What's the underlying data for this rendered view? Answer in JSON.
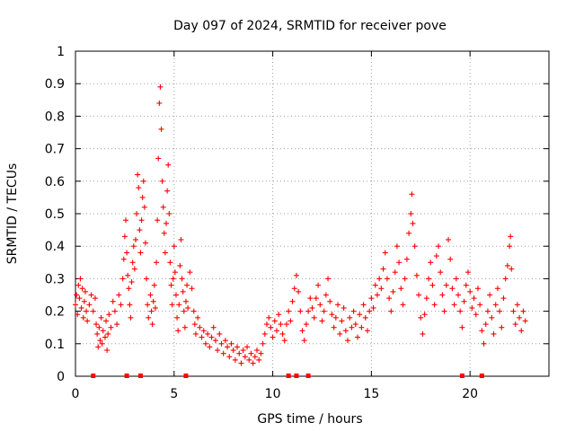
{
  "chart_data": {
    "type": "scatter",
    "title": "Day 097 of 2024, SRMTID for receiver pove",
    "xlabel": "GPS time / hours",
    "ylabel": "SRMTID / TECUs",
    "xlim": [
      0,
      24
    ],
    "ylim": [
      0,
      1
    ],
    "x_ticks": [
      0,
      5,
      10,
      15,
      20
    ],
    "x_tick_labels": [
      "0",
      "5",
      "10",
      "15",
      "20"
    ],
    "y_ticks": [
      0,
      0.1,
      0.2,
      0.3,
      0.4,
      0.5,
      0.6,
      0.7,
      0.8,
      0.9,
      1
    ],
    "y_tick_labels": [
      "0",
      "0.1",
      "0.2",
      "0.3",
      "0.4",
      "0.5",
      "0.6",
      "0.7",
      "0.8",
      "0.9",
      "1"
    ],
    "grid": true,
    "marker": "+",
    "color": "#ff0000",
    "series": [
      {
        "name": "SRMTID",
        "points": [
          [
            0.0,
            0.22
          ],
          [
            0.05,
            0.25
          ],
          [
            0.1,
            0.19
          ],
          [
            0.15,
            0.28
          ],
          [
            0.2,
            0.24
          ],
          [
            0.25,
            0.3
          ],
          [
            0.3,
            0.21
          ],
          [
            0.35,
            0.27
          ],
          [
            0.4,
            0.18
          ],
          [
            0.45,
            0.23
          ],
          [
            0.5,
            0.26
          ],
          [
            0.55,
            0.2
          ],
          [
            0.6,
            0.17
          ],
          [
            0.7,
            0.22
          ],
          [
            0.8,
            0.25
          ],
          [
            0.9,
            0.2
          ],
          [
            1.0,
            0.24
          ],
          [
            1.05,
            0.16
          ],
          [
            1.1,
            0.13
          ],
          [
            1.15,
            0.09
          ],
          [
            1.2,
            0.15
          ],
          [
            1.25,
            0.11
          ],
          [
            1.3,
            0.18
          ],
          [
            1.35,
            0.1
          ],
          [
            1.4,
            0.14
          ],
          [
            1.5,
            0.12
          ],
          [
            1.55,
            0.17
          ],
          [
            1.6,
            0.08
          ],
          [
            1.65,
            0.13
          ],
          [
            1.7,
            0.19
          ],
          [
            1.8,
            0.15
          ],
          [
            1.9,
            0.23
          ],
          [
            2.0,
            0.2
          ],
          [
            2.1,
            0.16
          ],
          [
            2.2,
            0.25
          ],
          [
            2.3,
            0.22
          ],
          [
            2.4,
            0.3
          ],
          [
            2.45,
            0.36
          ],
          [
            2.5,
            0.43
          ],
          [
            2.55,
            0.48
          ],
          [
            2.6,
            0.38
          ],
          [
            2.65,
            0.31
          ],
          [
            2.7,
            0.27
          ],
          [
            2.75,
            0.22
          ],
          [
            2.8,
            0.18
          ],
          [
            2.85,
            0.29
          ],
          [
            2.9,
            0.35
          ],
          [
            2.95,
            0.4
          ],
          [
            3.0,
            0.33
          ],
          [
            3.05,
            0.42
          ],
          [
            3.1,
            0.5
          ],
          [
            3.15,
            0.62
          ],
          [
            3.2,
            0.58
          ],
          [
            3.25,
            0.45
          ],
          [
            3.3,
            0.38
          ],
          [
            3.35,
            0.48
          ],
          [
            3.4,
            0.55
          ],
          [
            3.45,
            0.6
          ],
          [
            3.5,
            0.52
          ],
          [
            3.55,
            0.41
          ],
          [
            3.6,
            0.3
          ],
          [
            3.65,
            0.22
          ],
          [
            3.7,
            0.18
          ],
          [
            3.8,
            0.25
          ],
          [
            3.85,
            0.2
          ],
          [
            3.9,
            0.16
          ],
          [
            3.95,
            0.23
          ],
          [
            4.0,
            0.28
          ],
          [
            4.05,
            0.21
          ],
          [
            4.1,
            0.35
          ],
          [
            4.15,
            0.48
          ],
          [
            4.2,
            0.67
          ],
          [
            4.25,
            0.84
          ],
          [
            4.3,
            0.89
          ],
          [
            4.35,
            0.76
          ],
          [
            4.4,
            0.6
          ],
          [
            4.45,
            0.52
          ],
          [
            4.5,
            0.44
          ],
          [
            4.55,
            0.38
          ],
          [
            4.6,
            0.47
          ],
          [
            4.65,
            0.57
          ],
          [
            4.7,
            0.65
          ],
          [
            4.75,
            0.5
          ],
          [
            4.8,
            0.35
          ],
          [
            4.85,
            0.28
          ],
          [
            4.9,
            0.22
          ],
          [
            4.95,
            0.3
          ],
          [
            5.0,
            0.4
          ],
          [
            5.05,
            0.32
          ],
          [
            5.1,
            0.25
          ],
          [
            5.15,
            0.18
          ],
          [
            5.2,
            0.14
          ],
          [
            5.25,
            0.22
          ],
          [
            5.3,
            0.34
          ],
          [
            5.35,
            0.42
          ],
          [
            5.4,
            0.3
          ],
          [
            5.45,
            0.26
          ],
          [
            5.5,
            0.2
          ],
          [
            5.55,
            0.15
          ],
          [
            5.6,
            0.23
          ],
          [
            5.65,
            0.28
          ],
          [
            5.7,
            0.21
          ],
          [
            5.8,
            0.32
          ],
          [
            5.9,
            0.27
          ],
          [
            6.0,
            0.2
          ],
          [
            6.05,
            0.16
          ],
          [
            6.1,
            0.13
          ],
          [
            6.2,
            0.18
          ],
          [
            6.3,
            0.15
          ],
          [
            6.4,
            0.12
          ],
          [
            6.5,
            0.14
          ],
          [
            6.6,
            0.1
          ],
          [
            6.7,
            0.13
          ],
          [
            6.8,
            0.09
          ],
          [
            6.9,
            0.12
          ],
          [
            7.0,
            0.15
          ],
          [
            7.1,
            0.11
          ],
          [
            7.2,
            0.08
          ],
          [
            7.3,
            0.13
          ],
          [
            7.4,
            0.1
          ],
          [
            7.5,
            0.07
          ],
          [
            7.6,
            0.11
          ],
          [
            7.7,
            0.09
          ],
          [
            7.8,
            0.06
          ],
          [
            7.9,
            0.1
          ],
          [
            8.0,
            0.08
          ],
          [
            8.1,
            0.05
          ],
          [
            8.2,
            0.09
          ],
          [
            8.3,
            0.07
          ],
          [
            8.4,
            0.04
          ],
          [
            8.5,
            0.08
          ],
          [
            8.6,
            0.06
          ],
          [
            8.7,
            0.09
          ],
          [
            8.8,
            0.05
          ],
          [
            8.9,
            0.07
          ],
          [
            9.0,
            0.04
          ],
          [
            9.1,
            0.06
          ],
          [
            9.2,
            0.08
          ],
          [
            9.3,
            0.05
          ],
          [
            9.4,
            0.07
          ],
          [
            9.5,
            0.1
          ],
          [
            9.6,
            0.13
          ],
          [
            9.7,
            0.16
          ],
          [
            9.8,
            0.18
          ],
          [
            9.9,
            0.15
          ],
          [
            10.0,
            0.12
          ],
          [
            10.1,
            0.17
          ],
          [
            10.2,
            0.14
          ],
          [
            10.3,
            0.19
          ],
          [
            10.4,
            0.16
          ],
          [
            10.5,
            0.13
          ],
          [
            10.6,
            0.11
          ],
          [
            10.7,
            0.16
          ],
          [
            10.8,
            0.2
          ],
          [
            10.9,
            0.17
          ],
          [
            11.0,
            0.23
          ],
          [
            11.1,
            0.27
          ],
          [
            11.2,
            0.31
          ],
          [
            11.3,
            0.26
          ],
          [
            11.4,
            0.2
          ],
          [
            11.5,
            0.14
          ],
          [
            11.6,
            0.11
          ],
          [
            11.7,
            0.16
          ],
          [
            11.8,
            0.2
          ],
          [
            11.9,
            0.24
          ],
          [
            12.0,
            0.21
          ],
          [
            12.1,
            0.18
          ],
          [
            12.2,
            0.24
          ],
          [
            12.3,
            0.28
          ],
          [
            12.4,
            0.22
          ],
          [
            12.5,
            0.17
          ],
          [
            12.6,
            0.2
          ],
          [
            12.7,
            0.25
          ],
          [
            12.8,
            0.3
          ],
          [
            12.9,
            0.23
          ],
          [
            13.0,
            0.19
          ],
          [
            13.1,
            0.15
          ],
          [
            13.2,
            0.18
          ],
          [
            13.3,
            0.22
          ],
          [
            13.4,
            0.13
          ],
          [
            13.5,
            0.17
          ],
          [
            13.6,
            0.21
          ],
          [
            13.7,
            0.14
          ],
          [
            13.8,
            0.11
          ],
          [
            13.9,
            0.18
          ],
          [
            14.0,
            0.15
          ],
          [
            14.1,
            0.2
          ],
          [
            14.2,
            0.16
          ],
          [
            14.3,
            0.12
          ],
          [
            14.4,
            0.19
          ],
          [
            14.5,
            0.15
          ],
          [
            14.6,
            0.22
          ],
          [
            14.7,
            0.18
          ],
          [
            14.8,
            0.14
          ],
          [
            14.9,
            0.2
          ],
          [
            15.0,
            0.24
          ],
          [
            15.1,
            0.21
          ],
          [
            15.2,
            0.28
          ],
          [
            15.3,
            0.25
          ],
          [
            15.4,
            0.3
          ],
          [
            15.5,
            0.27
          ],
          [
            15.6,
            0.33
          ],
          [
            15.7,
            0.38
          ],
          [
            15.8,
            0.3
          ],
          [
            15.9,
            0.24
          ],
          [
            16.0,
            0.2
          ],
          [
            16.1,
            0.26
          ],
          [
            16.2,
            0.32
          ],
          [
            16.3,
            0.4
          ],
          [
            16.4,
            0.35
          ],
          [
            16.5,
            0.27
          ],
          [
            16.6,
            0.22
          ],
          [
            16.7,
            0.3
          ],
          [
            16.8,
            0.36
          ],
          [
            16.9,
            0.44
          ],
          [
            17.0,
            0.5
          ],
          [
            17.05,
            0.56
          ],
          [
            17.1,
            0.47
          ],
          [
            17.2,
            0.4
          ],
          [
            17.3,
            0.31
          ],
          [
            17.4,
            0.25
          ],
          [
            17.5,
            0.18
          ],
          [
            17.6,
            0.13
          ],
          [
            17.7,
            0.19
          ],
          [
            17.8,
            0.24
          ],
          [
            17.9,
            0.3
          ],
          [
            18.0,
            0.35
          ],
          [
            18.1,
            0.28
          ],
          [
            18.2,
            0.22
          ],
          [
            18.3,
            0.37
          ],
          [
            18.4,
            0.4
          ],
          [
            18.5,
            0.32
          ],
          [
            18.6,
            0.25
          ],
          [
            18.7,
            0.2
          ],
          [
            18.8,
            0.28
          ],
          [
            18.9,
            0.42
          ],
          [
            19.0,
            0.36
          ],
          [
            19.1,
            0.27
          ],
          [
            19.2,
            0.22
          ],
          [
            19.3,
            0.3
          ],
          [
            19.4,
            0.25
          ],
          [
            19.5,
            0.2
          ],
          [
            19.6,
            0.15
          ],
          [
            19.7,
            0.23
          ],
          [
            19.8,
            0.28
          ],
          [
            19.9,
            0.32
          ],
          [
            20.0,
            0.26
          ],
          [
            20.1,
            0.21
          ],
          [
            20.2,
            0.24
          ],
          [
            20.3,
            0.19
          ],
          [
            20.4,
            0.27
          ],
          [
            20.5,
            0.22
          ],
          [
            20.6,
            0.14
          ],
          [
            20.7,
            0.1
          ],
          [
            20.8,
            0.16
          ],
          [
            20.9,
            0.2
          ],
          [
            21.0,
            0.25
          ],
          [
            21.1,
            0.18
          ],
          [
            21.2,
            0.13
          ],
          [
            21.3,
            0.22
          ],
          [
            21.4,
            0.27
          ],
          [
            21.5,
            0.2
          ],
          [
            21.6,
            0.15
          ],
          [
            21.7,
            0.24
          ],
          [
            21.8,
            0.3
          ],
          [
            21.9,
            0.34
          ],
          [
            22.0,
            0.4
          ],
          [
            22.05,
            0.43
          ],
          [
            22.1,
            0.33
          ],
          [
            22.2,
            0.2
          ],
          [
            22.3,
            0.16
          ],
          [
            22.4,
            0.22
          ],
          [
            22.5,
            0.18
          ],
          [
            22.6,
            0.14
          ],
          [
            22.7,
            0.2
          ],
          [
            22.8,
            0.17
          ]
        ]
      }
    ],
    "zero_markers_x": [
      0.9,
      2.6,
      3.3,
      5.6,
      10.8,
      11.2,
      11.8,
      19.6,
      20.6
    ]
  }
}
